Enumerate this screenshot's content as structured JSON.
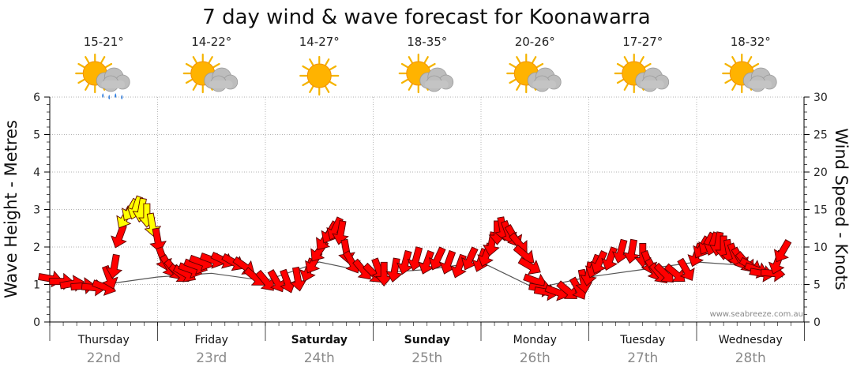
{
  "chart_data": {
    "type": "line",
    "title": "7 day wind & wave forecast for Koonawarra",
    "ylabel_left": "Wave Height - Metres",
    "ylabel_right": "Wind Speed - Knots",
    "ylim_left": [
      0,
      6
    ],
    "ylim_right": [
      0,
      30
    ],
    "left_ticks": [
      "0",
      "1",
      "2",
      "3",
      "4",
      "5",
      "6"
    ],
    "right_ticks": [
      "0",
      "5",
      "10",
      "15",
      "20",
      "25",
      "30"
    ],
    "grid": true,
    "days": [
      {
        "name": "Thursday",
        "date": "22nd",
        "bold": false,
        "temp": "15-21°",
        "weather": "sun-cloud-rain-icon"
      },
      {
        "name": "Friday",
        "date": "23rd",
        "bold": false,
        "temp": "14-22°",
        "weather": "sun-cloud-icon"
      },
      {
        "name": "Saturday",
        "date": "24th",
        "bold": true,
        "temp": "14-27°",
        "weather": "sun-icon"
      },
      {
        "name": "Sunday",
        "date": "25th",
        "bold": true,
        "temp": "18-35°",
        "weather": "sun-cloud-icon"
      },
      {
        "name": "Monday",
        "date": "26th",
        "bold": false,
        "temp": "20-26°",
        "weather": "sun-cloud-icon"
      },
      {
        "name": "Tuesday",
        "date": "27th",
        "bold": false,
        "temp": "17-27°",
        "weather": "sun-cloud-icon"
      },
      {
        "name": "Wednesday",
        "date": "28th",
        "bold": false,
        "temp": "18-32°",
        "weather": "sun-cloud-icon"
      }
    ],
    "series": [
      {
        "name": "Wind Speed",
        "units": "knots",
        "arrow_colors": {
          "default": "#ff0000",
          "strong": "#ffff00"
        },
        "points": [
          [
            0.0,
            5.8,
            100
          ],
          [
            0.1,
            5.4,
            90
          ],
          [
            0.2,
            5.1,
            80
          ],
          [
            0.3,
            4.8,
            85
          ],
          [
            0.4,
            4.6,
            95
          ],
          [
            0.5,
            4.7,
            110
          ],
          [
            0.55,
            6.0,
            160
          ],
          [
            0.6,
            7.5,
            190
          ],
          [
            0.65,
            11.5,
            200
          ],
          [
            0.7,
            14.0,
            210
          ],
          [
            0.75,
            15.0,
            210
          ],
          [
            0.8,
            15.3,
            200
          ],
          [
            0.85,
            15.0,
            190
          ],
          [
            0.9,
            14.3,
            180
          ],
          [
            0.95,
            13.0,
            170
          ],
          [
            1.0,
            11.0,
            170
          ],
          [
            1.05,
            8.5,
            160
          ],
          [
            1.1,
            7.5,
            150
          ],
          [
            1.15,
            7.0,
            140
          ],
          [
            1.2,
            6.5,
            130
          ],
          [
            1.25,
            6.5,
            120
          ],
          [
            1.3,
            7.0,
            110
          ],
          [
            1.35,
            7.5,
            110
          ],
          [
            1.4,
            8.0,
            110
          ],
          [
            1.5,
            8.3,
            110
          ],
          [
            1.6,
            8.3,
            115
          ],
          [
            1.7,
            8.0,
            120
          ],
          [
            1.8,
            7.5,
            125
          ],
          [
            1.9,
            6.0,
            130
          ],
          [
            2.0,
            5.5,
            140
          ],
          [
            2.1,
            5.5,
            150
          ],
          [
            2.2,
            5.5,
            160
          ],
          [
            2.3,
            5.8,
            170
          ],
          [
            2.4,
            7.0,
            200
          ],
          [
            2.45,
            8.0,
            210
          ],
          [
            2.5,
            9.5,
            215
          ],
          [
            2.55,
            11.0,
            215
          ],
          [
            2.6,
            12.0,
            210
          ],
          [
            2.65,
            12.5,
            205
          ],
          [
            2.7,
            12.0,
            190
          ],
          [
            2.75,
            9.5,
            170
          ],
          [
            2.8,
            8.0,
            150
          ],
          [
            2.9,
            7.0,
            140
          ],
          [
            3.0,
            6.5,
            135
          ],
          [
            3.05,
            7.0,
            160
          ],
          [
            3.1,
            6.5,
            180
          ],
          [
            3.2,
            7.0,
            190
          ],
          [
            3.3,
            8.0,
            195
          ],
          [
            3.4,
            8.5,
            195
          ],
          [
            3.5,
            8.0,
            200
          ],
          [
            3.6,
            8.5,
            205
          ],
          [
            3.7,
            8.0,
            200
          ],
          [
            3.8,
            7.5,
            200
          ],
          [
            3.9,
            8.5,
            205
          ],
          [
            4.0,
            8.3,
            200
          ],
          [
            4.05,
            9.0,
            200
          ],
          [
            4.1,
            10.5,
            190
          ],
          [
            4.15,
            12.0,
            180
          ],
          [
            4.2,
            12.5,
            170
          ],
          [
            4.25,
            12.0,
            160
          ],
          [
            4.3,
            11.5,
            150
          ],
          [
            4.35,
            10.5,
            140
          ],
          [
            4.4,
            9.0,
            130
          ],
          [
            4.45,
            7.5,
            120
          ],
          [
            4.5,
            5.5,
            110
          ],
          [
            4.55,
            4.5,
            100
          ],
          [
            4.6,
            4.0,
            100
          ],
          [
            4.7,
            4.0,
            110
          ],
          [
            4.8,
            4.2,
            130
          ],
          [
            4.9,
            4.5,
            150
          ],
          [
            4.95,
            5.5,
            170
          ],
          [
            5.0,
            6.5,
            190
          ],
          [
            5.05,
            7.5,
            200
          ],
          [
            5.1,
            8.0,
            205
          ],
          [
            5.2,
            8.5,
            200
          ],
          [
            5.3,
            9.5,
            195
          ],
          [
            5.4,
            9.5,
            190
          ],
          [
            5.5,
            9.0,
            180
          ],
          [
            5.55,
            8.0,
            160
          ],
          [
            5.6,
            7.0,
            150
          ],
          [
            5.65,
            6.5,
            140
          ],
          [
            5.7,
            6.5,
            135
          ],
          [
            5.8,
            6.5,
            130
          ],
          [
            5.9,
            7.0,
            150
          ],
          [
            6.0,
            9.0,
            200
          ],
          [
            6.05,
            10.0,
            210
          ],
          [
            6.1,
            10.5,
            210
          ],
          [
            6.15,
            10.5,
            200
          ],
          [
            6.2,
            10.5,
            190
          ],
          [
            6.25,
            10.0,
            180
          ],
          [
            6.3,
            9.5,
            170
          ],
          [
            6.35,
            9.0,
            160
          ],
          [
            6.4,
            8.5,
            150
          ],
          [
            6.45,
            8.0,
            140
          ],
          [
            6.5,
            7.5,
            120
          ],
          [
            6.55,
            7.0,
            110
          ],
          [
            6.6,
            6.5,
            100
          ],
          [
            6.7,
            6.5,
            95
          ],
          [
            6.75,
            8.0,
            200
          ],
          [
            6.8,
            9.5,
            210
          ]
        ]
      },
      {
        "name": "Wave Height",
        "units": "metres",
        "line_color": "#555555",
        "x": [
          0.0,
          0.5,
          1.0,
          1.5,
          2.0,
          2.5,
          3.0,
          3.5,
          4.0,
          4.5,
          5.0,
          5.5,
          6.0,
          6.5,
          6.8
        ],
        "values": [
          1.1,
          1.0,
          1.2,
          1.3,
          1.1,
          1.6,
          1.3,
          1.4,
          1.6,
          0.9,
          1.2,
          1.4,
          1.6,
          1.5,
          1.2
        ]
      }
    ]
  },
  "credit": "www.seabreeze.com.au",
  "colors": {
    "grid": "#999999",
    "axis": "#000000",
    "date_text": "#8a8a8a"
  }
}
